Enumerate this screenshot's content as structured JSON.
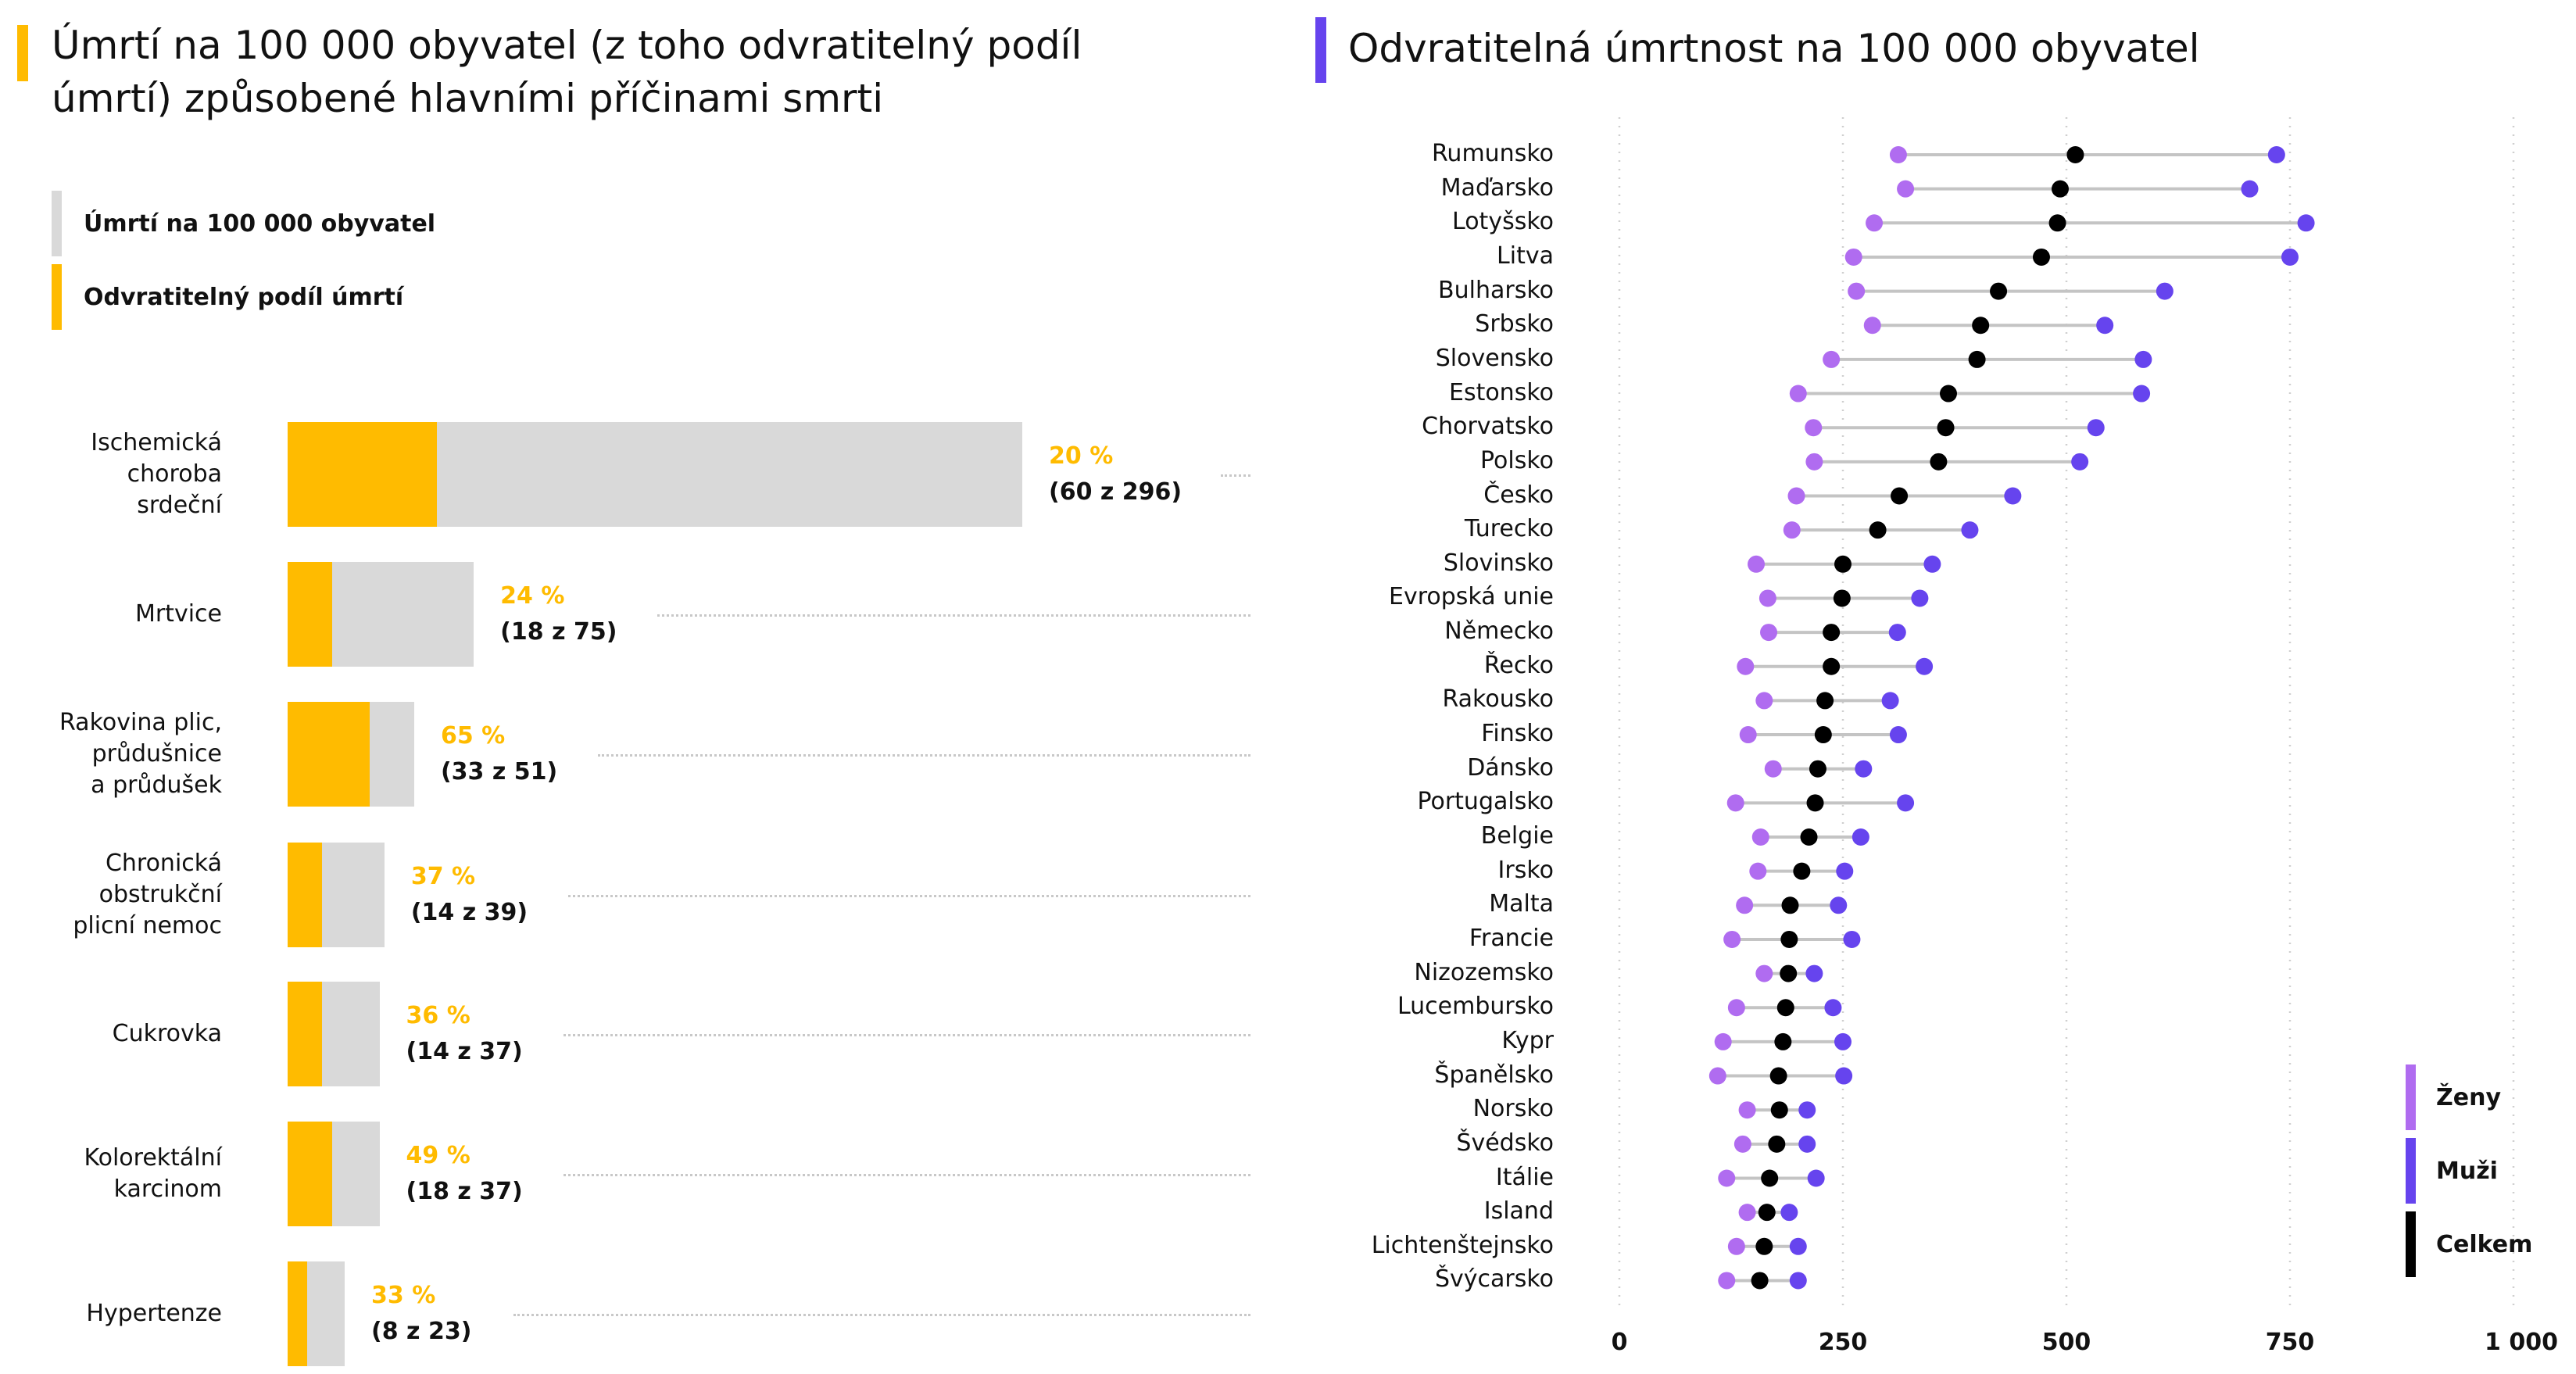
{
  "left": {
    "title_line1": "Úmrtí na 100 000 obyvatel (z toho odvratitelný podíl",
    "title_line2": "úmrtí) způsobené hlavními příčinami smrti",
    "legend": [
      {
        "label": "Úmrtí na 100 000 obyvatel",
        "color": "#d9d9d9"
      },
      {
        "label": "Odvratitelný podíl úmrtí",
        "color": "#ffbb00"
      }
    ],
    "accent_color": "#ffbb00"
  },
  "right": {
    "title": "Odvratitelná úmrtnost na 100 000 obyvatel",
    "accent_color": "#6644ee",
    "legend": [
      {
        "label": "Ženy",
        "color": "#b06cf0"
      },
      {
        "label": "Muži",
        "color": "#6644ee"
      },
      {
        "label": "Celkem",
        "color": "#000000"
      }
    ]
  },
  "chart_data": [
    {
      "type": "bar",
      "categories": [
        "Ischemická\nchoroba\nsrdeční",
        "Mrtvice",
        "Rakovina plic,\nprůdušnice\na průdušek",
        "Chronická\nobstrukční\nplicní nemoc",
        "Cukrovka",
        "Kolorektální\nkarcinom",
        "Hypertenze"
      ],
      "series": [
        {
          "name": "Úmrtí na 100 000 obyvatel",
          "values": [
            296,
            75,
            51,
            39,
            37,
            37,
            23
          ]
        },
        {
          "name": "Odvratitelný podíl úmrtí",
          "values": [
            60,
            18,
            33,
            14,
            14,
            18,
            8
          ]
        }
      ],
      "percent_labels": [
        "20 %",
        "24 %",
        "65 %",
        "37 %",
        "36 %",
        "49 %",
        "33 %"
      ],
      "fraction_labels": [
        "(60 z 296)",
        "(18 z 75)",
        "(33 z 51)",
        "(14 z 39)",
        "(14 z 37)",
        "(18 z 37)",
        "(8 z 23)"
      ],
      "orientation": "horizontal"
    },
    {
      "type": "scatter",
      "categories": [
        "Rumunsko",
        "Maďarsko",
        "Lotyšsko",
        "Litva",
        "Bulharsko",
        "Srbsko",
        "Slovensko",
        "Estonsko",
        "Chorvatsko",
        "Polsko",
        "Česko",
        "Turecko",
        "Slovinsko",
        "Evropská unie",
        "Německo",
        "Řecko",
        "Rakousko",
        "Finsko",
        "Dánsko",
        "Portugalsko",
        "Belgie",
        "Irsko",
        "Malta",
        "Francie",
        "Nizozemsko",
        "Lucembursko",
        "Kypr",
        "Španělsko",
        "Norsko",
        "Švédsko",
        "Itálie",
        "Island",
        "Lichtenštejnsko",
        "Švýcarsko"
      ],
      "series": [
        {
          "name": "Ženy",
          "values": [
            312,
            320,
            285,
            262,
            265,
            283,
            237,
            200,
            217,
            218,
            198,
            193,
            153,
            166,
            167,
            141,
            162,
            144,
            172,
            130,
            158,
            155,
            140,
            126,
            162,
            131,
            116,
            110,
            143,
            138,
            120,
            143,
            131,
            120
          ]
        },
        {
          "name": "Muži",
          "values": [
            735,
            705,
            768,
            750,
            610,
            543,
            586,
            584,
            533,
            515,
            440,
            392,
            350,
            336,
            311,
            341,
            303,
            312,
            273,
            320,
            270,
            252,
            245,
            260,
            218,
            239,
            250,
            251,
            210,
            210,
            220,
            190,
            200,
            200
          ]
        },
        {
          "name": "Celkem",
          "values": [
            510,
            493,
            490,
            472,
            424,
            404,
            400,
            368,
            365,
            357,
            313,
            289,
            250,
            249,
            237,
            237,
            230,
            228,
            222,
            219,
            212,
            204,
            191,
            190,
            189,
            186,
            183,
            178,
            179,
            176,
            168,
            165,
            162,
            157
          ]
        }
      ],
      "xlim": [
        0,
        1000
      ],
      "xticks": [
        "0",
        "250",
        "500",
        "750",
        "1 000"
      ],
      "grid": true,
      "legend_position": "bottom-right"
    }
  ]
}
